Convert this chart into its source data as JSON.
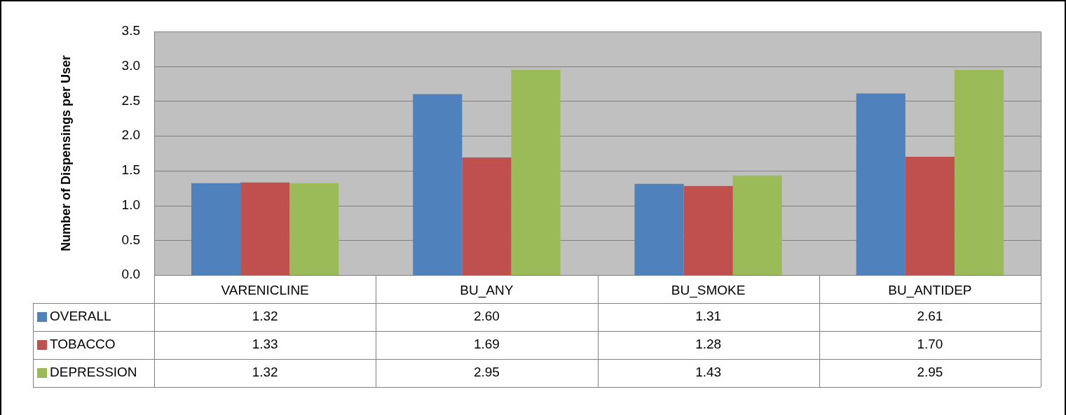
{
  "chart_data": {
    "type": "bar",
    "ylabel": "Number of Dispensings per User",
    "categories": [
      "VARENICLINE",
      "BU_ANY",
      "BU_SMOKE",
      "BU_ANTIDEP"
    ],
    "series": [
      {
        "name": "OVERALL",
        "color": "#4f81bd",
        "values": [
          1.32,
          2.6,
          1.31,
          2.61
        ],
        "value_labels": [
          "1.32",
          "2.60",
          "1.31",
          "2.61"
        ]
      },
      {
        "name": "TOBACCO",
        "color": "#c0504d",
        "values": [
          1.33,
          1.69,
          1.28,
          1.7
        ],
        "value_labels": [
          "1.33",
          "1.69",
          "1.28",
          "1.70"
        ]
      },
      {
        "name": "DEPRESSION",
        "color": "#9bbb59",
        "values": [
          1.32,
          2.95,
          1.43,
          2.95
        ],
        "value_labels": [
          "1.32",
          "2.95",
          "1.43",
          "2.95"
        ]
      }
    ],
    "ylim": [
      0,
      3.5
    ],
    "yticks": [
      {
        "value": 0,
        "label": "0.0"
      },
      {
        "value": 0.5,
        "label": "0.5"
      },
      {
        "value": 1,
        "label": "1.0"
      },
      {
        "value": 1.5,
        "label": "1.5"
      },
      {
        "value": 2,
        "label": "2.0"
      },
      {
        "value": 2.5,
        "label": "2.5"
      },
      {
        "value": 3,
        "label": "3.0"
      },
      {
        "value": 3.5,
        "label": "3.5"
      }
    ],
    "grid": "y",
    "legend": "bottom"
  }
}
